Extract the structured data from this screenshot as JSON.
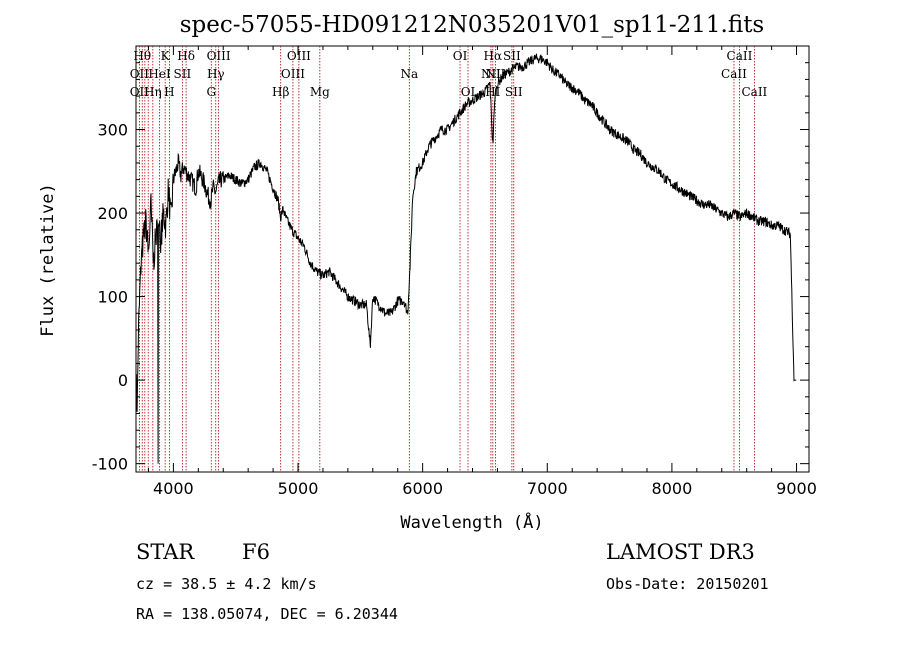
{
  "chart_data": {
    "type": "line",
    "title": "spec-57055-HD091212N035201V01_sp11-211.fits",
    "xlabel": "Wavelength (Å)",
    "ylabel": "Flux (relative)",
    "xlim": [
      3700,
      9100
    ],
    "ylim": [
      -110,
      400
    ],
    "x_ticks": [
      4000,
      5000,
      6000,
      7000,
      8000,
      9000
    ],
    "y_ticks": [
      -100,
      0,
      100,
      200,
      300
    ],
    "series": [
      {
        "color": "#000000",
        "x": [
          3700,
          3710,
          3720,
          3740,
          3760,
          3780,
          3800,
          3820,
          3840,
          3860,
          3880,
          3900,
          3920,
          3940,
          3960,
          3980,
          4000,
          4020,
          4040,
          4060,
          4080,
          4100,
          4120,
          4140,
          4160,
          4180,
          4200,
          4220,
          4250,
          4280,
          4300,
          4320,
          4340,
          4360,
          4380,
          4400,
          4450,
          4500,
          4550,
          4600,
          4650,
          4700,
          4750,
          4800,
          4840,
          4860,
          4880,
          4900,
          4950,
          5000,
          5050,
          5100,
          5150,
          5200,
          5250,
          5300,
          5350,
          5400,
          5450,
          5500,
          5550,
          5580,
          5600,
          5650,
          5700,
          5750,
          5800,
          5850,
          5880,
          5900,
          5920,
          5950,
          6000,
          6050,
          6100,
          6150,
          6200,
          6250,
          6300,
          6350,
          6400,
          6450,
          6500,
          6540,
          6563,
          6580,
          6600,
          6650,
          6700,
          6750,
          6800,
          6850,
          6900,
          6950,
          7000,
          7050,
          7100,
          7150,
          7200,
          7250,
          7300,
          7350,
          7400,
          7450,
          7500,
          7550,
          7600,
          7650,
          7700,
          7750,
          7800,
          7850,
          7900,
          7950,
          8000,
          8050,
          8100,
          8150,
          8200,
          8250,
          8300,
          8350,
          8400,
          8450,
          8500,
          8550,
          8600,
          8650,
          8700,
          8750,
          8800,
          8850,
          8900,
          8950,
          8980,
          9000
        ],
        "y": [
          0,
          -30,
          60,
          140,
          170,
          190,
          150,
          210,
          140,
          175,
          180,
          170,
          200,
          185,
          230,
          190,
          240,
          250,
          260,
          245,
          255,
          250,
          245,
          240,
          235,
          230,
          250,
          245,
          235,
          220,
          215,
          230,
          225,
          235,
          240,
          240,
          245,
          240,
          235,
          240,
          255,
          260,
          250,
          230,
          215,
          195,
          205,
          195,
          180,
          170,
          160,
          140,
          130,
          125,
          130,
          120,
          110,
          100,
          95,
          90,
          90,
          40,
          100,
          90,
          80,
          80,
          95,
          95,
          80,
          140,
          220,
          250,
          260,
          280,
          290,
          300,
          300,
          310,
          320,
          330,
          335,
          340,
          345,
          355,
          280,
          340,
          355,
          365,
          370,
          375,
          375,
          380,
          385,
          385,
          380,
          370,
          365,
          355,
          350,
          345,
          335,
          330,
          320,
          310,
          300,
          295,
          290,
          285,
          275,
          270,
          260,
          255,
          250,
          240,
          235,
          230,
          225,
          220,
          215,
          210,
          210,
          205,
          200,
          195,
          200,
          195,
          200,
          195,
          190,
          190,
          185,
          185,
          180,
          175,
          0,
          0
        ]
      }
    ],
    "line_labels": [
      {
        "text": "Hθ",
        "x": 3750,
        "row": 0
      },
      {
        "text": "K",
        "x": 3934,
        "row": 0
      },
      {
        "text": "Hδ",
        "x": 4102,
        "row": 0
      },
      {
        "text": "OIII",
        "x": 4363,
        "row": 0
      },
      {
        "text": "OIII",
        "x": 5007,
        "row": 0
      },
      {
        "text": "OI",
        "x": 6300,
        "row": 0
      },
      {
        "text": "Hα",
        "x": 6563,
        "row": 0
      },
      {
        "text": "SII",
        "x": 6716,
        "row": 0
      },
      {
        "text": "CaII",
        "x": 8542,
        "row": 0
      },
      {
        "text": "OII",
        "x": 3727,
        "row": 1
      },
      {
        "text": "HeI",
        "x": 3889,
        "row": 1
      },
      {
        "text": "SII",
        "x": 4072,
        "row": 1
      },
      {
        "text": "Hγ",
        "x": 4340,
        "row": 1
      },
      {
        "text": "OIII",
        "x": 4959,
        "row": 1
      },
      {
        "text": "Na",
        "x": 5893,
        "row": 1
      },
      {
        "text": "NII",
        "x": 6548,
        "row": 1
      },
      {
        "text": "NII",
        "x": 6584,
        "row": 1
      },
      {
        "text": "CaII",
        "x": 8498,
        "row": 1
      },
      {
        "text": "OII",
        "x": 3727,
        "row": 2
      },
      {
        "text": "Hη",
        "x": 3835,
        "row": 2
      },
      {
        "text": "H",
        "x": 3968,
        "row": 2
      },
      {
        "text": "G",
        "x": 4304,
        "row": 2
      },
      {
        "text": "Hβ",
        "x": 4861,
        "row": 2
      },
      {
        "text": "Mg",
        "x": 5175,
        "row": 2
      },
      {
        "text": "OI",
        "x": 6364,
        "row": 2
      },
      {
        "text": "HI",
        "x": 6563,
        "row": 2
      },
      {
        "text": "SII",
        "x": 6731,
        "row": 2
      },
      {
        "text": "CaII",
        "x": 8662,
        "row": 2
      }
    ],
    "line_positions": [
      3727,
      3750,
      3771,
      3798,
      3835,
      3889,
      3934,
      3968,
      4072,
      4102,
      4304,
      4340,
      4363,
      4861,
      4959,
      5007,
      5175,
      5893,
      6300,
      6364,
      6548,
      6563,
      6584,
      6716,
      6731,
      8498,
      8542,
      8662
    ],
    "line_color": "#b00000",
    "grid": false
  },
  "info": {
    "class_label": "STAR",
    "subclass": "F6",
    "survey": "LAMOST DR3",
    "cz": "cz = 38.5 ± 4.2 km/s",
    "obs_date": "Obs-Date: 20150201",
    "coords": "RA = 138.05074, DEC =    6.20344"
  }
}
